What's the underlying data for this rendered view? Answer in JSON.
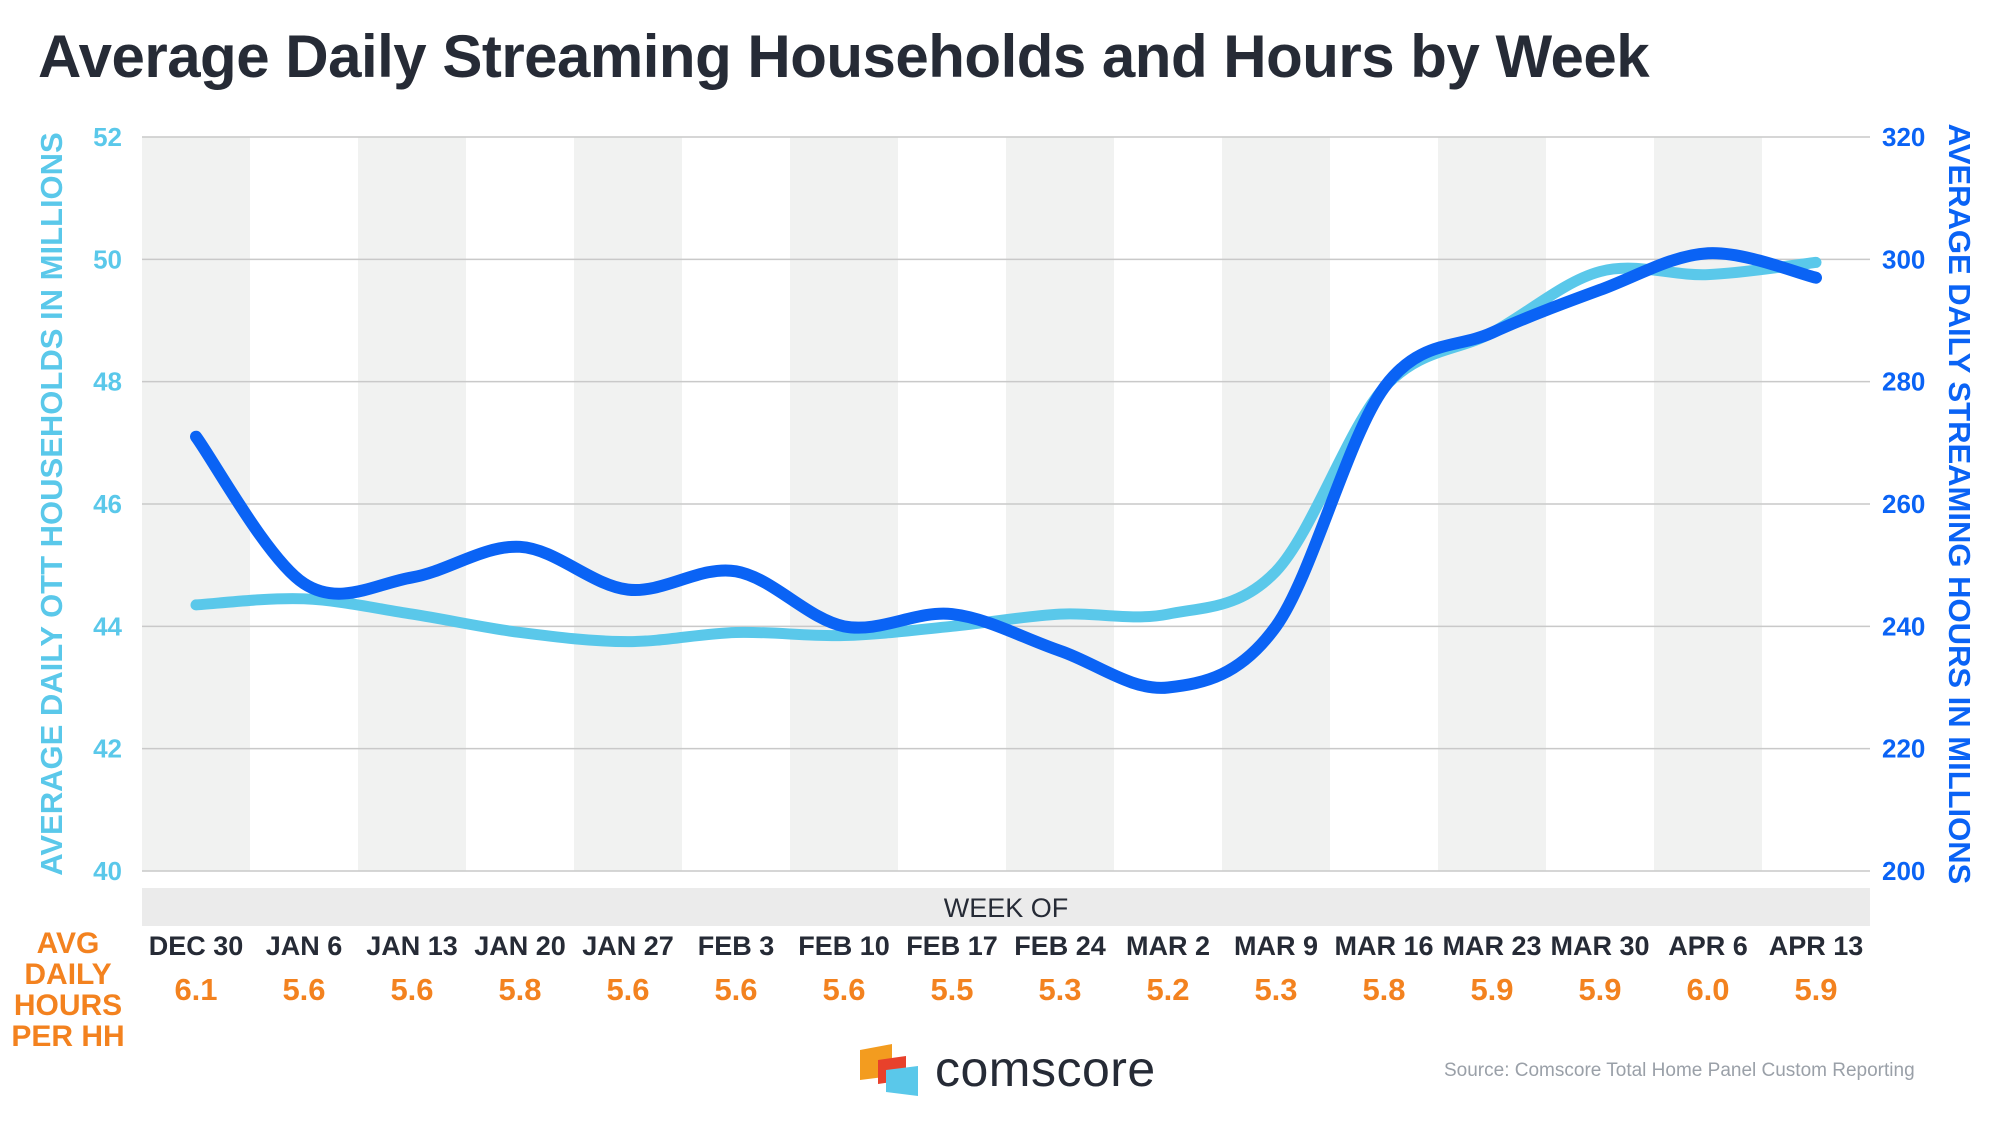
{
  "title": "Average Daily Streaming Households and Hours by Week",
  "source": "Source: Comscore Total Home Panel Custom Reporting",
  "logo": {
    "text": "comscore"
  },
  "colors": {
    "households": "#5ac8ea",
    "hours": "#0a63f5",
    "hoursPerHH": "#f3821f",
    "text": "#262b36",
    "band": "#f1f2f1",
    "grid": "#c9c9c9",
    "weekOfBar": "#ebebeb"
  },
  "chart_data": {
    "type": "line",
    "title": "Average Daily Streaming Households and Hours by Week",
    "xlabel": "WEEK OF",
    "categories": [
      "DEC 30",
      "JAN 6",
      "JAN 13",
      "JAN 20",
      "JAN 27",
      "FEB 3",
      "FEB 10",
      "FEB 17",
      "FEB 24",
      "MAR 2",
      "MAR 9",
      "MAR 16",
      "MAR 23",
      "MAR 30",
      "APR 6",
      "APR 13"
    ],
    "left_axis": {
      "label": "AVERAGE DAILY OTT HOUSEHOLDS IN MILLIONS",
      "ylim": [
        40,
        52
      ],
      "ticks": [
        "40",
        "42",
        "44",
        "46",
        "48",
        "50",
        "52"
      ]
    },
    "right_axis": {
      "label": "AVERAGE DAILY STREAMING HOURS IN MILLIONS",
      "ylim": [
        200,
        320
      ],
      "ticks": [
        "200",
        "220",
        "240",
        "260",
        "280",
        "300",
        "320"
      ]
    },
    "series": [
      {
        "name": "Average Daily OTT Households (M)",
        "axis": "left",
        "values": [
          44.35,
          44.45,
          44.2,
          43.9,
          43.75,
          43.9,
          43.85,
          44.0,
          44.2,
          44.2,
          44.9,
          47.9,
          48.8,
          49.8,
          49.75,
          49.95
        ]
      },
      {
        "name": "Average Daily Streaming Hours (M)",
        "axis": "right",
        "values": [
          271,
          247,
          248,
          253,
          246,
          249,
          240,
          242,
          236,
          230,
          240,
          279,
          288,
          295,
          301,
          297
        ]
      }
    ],
    "hours_per_hh": {
      "label": [
        "AVG",
        "DAILY",
        "HOURS",
        "PER HH"
      ],
      "values": [
        "6.1",
        "5.6",
        "5.6",
        "5.8",
        "5.6",
        "5.6",
        "5.6",
        "5.5",
        "5.3",
        "5.2",
        "5.3",
        "5.8",
        "5.9",
        "5.9",
        "6.0",
        "5.9"
      ]
    }
  }
}
